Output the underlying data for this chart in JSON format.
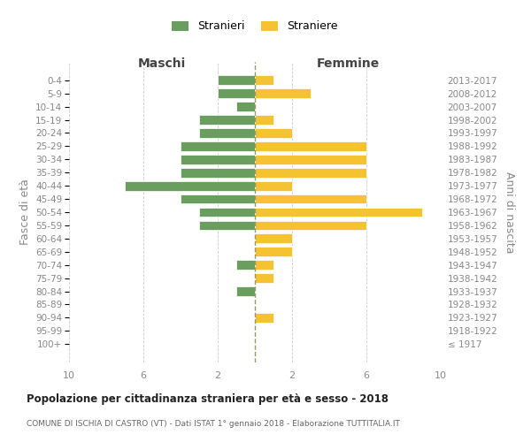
{
  "age_groups": [
    "100+",
    "95-99",
    "90-94",
    "85-89",
    "80-84",
    "75-79",
    "70-74",
    "65-69",
    "60-64",
    "55-59",
    "50-54",
    "45-49",
    "40-44",
    "35-39",
    "30-34",
    "25-29",
    "20-24",
    "15-19",
    "10-14",
    "5-9",
    "0-4"
  ],
  "birth_years": [
    "≤ 1917",
    "1918-1922",
    "1923-1927",
    "1928-1932",
    "1933-1937",
    "1938-1942",
    "1943-1947",
    "1948-1952",
    "1953-1957",
    "1958-1962",
    "1963-1967",
    "1968-1972",
    "1973-1977",
    "1978-1982",
    "1983-1987",
    "1988-1992",
    "1993-1997",
    "1998-2002",
    "2003-2007",
    "2008-2012",
    "2013-2017"
  ],
  "males": [
    0,
    0,
    0,
    0,
    1,
    0,
    1,
    0,
    0,
    3,
    3,
    4,
    7,
    4,
    4,
    4,
    3,
    3,
    1,
    2,
    2
  ],
  "females": [
    0,
    0,
    1,
    0,
    0,
    1,
    1,
    2,
    2,
    6,
    9,
    6,
    2,
    6,
    6,
    6,
    2,
    1,
    0,
    3,
    1
  ],
  "male_color": "#6a9e5f",
  "female_color": "#f5c231",
  "title": "Popolazione per cittadinanza straniera per età e sesso - 2018",
  "subtitle": "COMUNE DI ISCHIA DI CASTRO (VT) - Dati ISTAT 1° gennaio 2018 - Elaborazione TUTTITALIA.IT",
  "ylabel_left": "Fasce di età",
  "ylabel_right": "Anni di nascita",
  "xlabel_left": "Maschi",
  "xlabel_right": "Femmine",
  "legend_male": "Stranieri",
  "legend_female": "Straniere",
  "xlim": 10,
  "background_color": "#ffffff",
  "grid_color": "#cccccc",
  "text_color": "#888888",
  "header_color": "#444444"
}
